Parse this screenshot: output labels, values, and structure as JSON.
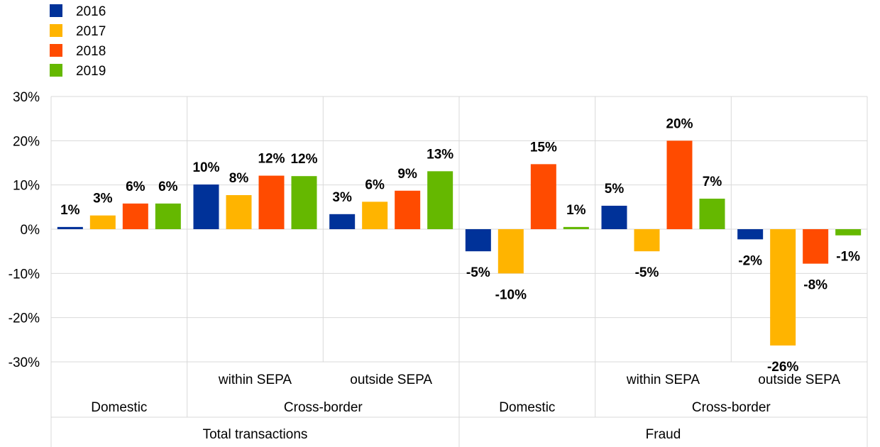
{
  "chart_data": {
    "type": "bar",
    "categories": [
      {
        "sub": "",
        "group": "Domestic",
        "top": "Total transactions"
      },
      {
        "sub": "within SEPA",
        "group": "Cross-border",
        "top": "Total transactions"
      },
      {
        "sub": "outside SEPA",
        "group": "Cross-border",
        "top": "Total transactions"
      },
      {
        "sub": "",
        "group": "Domestic",
        "top": "Fraud"
      },
      {
        "sub": "within SEPA",
        "group": "Cross-border",
        "top": "Fraud"
      },
      {
        "sub": "outside SEPA",
        "group": "Cross-border",
        "top": "Fraud"
      }
    ],
    "group_labels": [
      {
        "label": "Domestic",
        "from": 0,
        "to": 0
      },
      {
        "label": "Cross-border",
        "from": 1,
        "to": 2
      },
      {
        "label": "Domestic",
        "from": 3,
        "to": 3
      },
      {
        "label": "Cross-border",
        "from": 4,
        "to": 5
      }
    ],
    "top_labels": [
      {
        "label": "Total transactions",
        "from": 0,
        "to": 2
      },
      {
        "label": "Fraud",
        "from": 3,
        "to": 5
      }
    ],
    "series": [
      {
        "name": "2016",
        "color": "#003299",
        "values": [
          0.5,
          10.1,
          3.4,
          -5.0,
          5.3,
          -2.3
        ],
        "labels": [
          "1%",
          "10%",
          "3%",
          "-5%",
          "5%",
          "-2%"
        ]
      },
      {
        "name": "2017",
        "color": "#FFB400",
        "values": [
          3.1,
          7.7,
          6.2,
          -10.0,
          -5.0,
          -26.3
        ],
        "labels": [
          "3%",
          "8%",
          "6%",
          "-10%",
          "-5%",
          "-26%"
        ]
      },
      {
        "name": "2018",
        "color": "#FF4B00",
        "values": [
          5.8,
          12.1,
          8.7,
          14.7,
          20.0,
          -7.8
        ],
        "labels": [
          "6%",
          "12%",
          "9%",
          "15%",
          "20%",
          "-8%"
        ]
      },
      {
        "name": "2019",
        "color": "#65B800",
        "values": [
          5.8,
          12.0,
          13.1,
          0.5,
          6.9,
          -1.4
        ],
        "labels": [
          "6%",
          "12%",
          "13%",
          "1%",
          "7%",
          "-1%"
        ]
      }
    ],
    "ylim": [
      -30,
      30
    ],
    "yticks": [
      30,
      20,
      10,
      0,
      -10,
      -20,
      -30
    ],
    "ytick_labels": [
      "30%",
      "20%",
      "10%",
      "0%",
      "-10%",
      "-20%",
      "-30%"
    ],
    "grid": true,
    "legend_position": "top-left"
  }
}
